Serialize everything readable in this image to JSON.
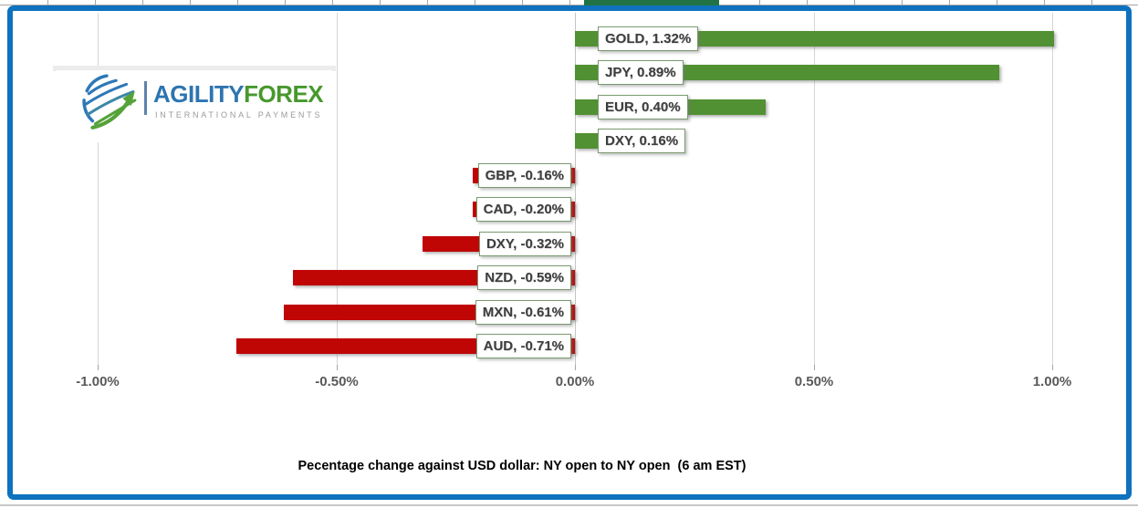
{
  "top_bar": {
    "selection_color": "#217346"
  },
  "logo": {
    "brand_primary": "AGILITY",
    "brand_secondary": "FOREX",
    "tagline": "INTERNATIONAL PAYMENTS",
    "brand_primary_color": "#2e74b0",
    "brand_secondary_color": "#47982c"
  },
  "chart_data": {
    "type": "bar",
    "orientation": "horizontal",
    "title": "Pecentage change against USD dollar: NY open to NY open  (6 am EST)",
    "value_suffix": "%",
    "xlim": [
      -1.0,
      1.0
    ],
    "grid": true,
    "positive_color": "#519133",
    "negative_color": "#c00505",
    "bars": [
      {
        "category": "GOLD",
        "value": 1.32,
        "label": "GOLD, 1.32%"
      },
      {
        "category": "JPY",
        "value": 0.89,
        "label": "JPY, 0.89%"
      },
      {
        "category": "EUR",
        "value": 0.4,
        "label": "EUR, 0.40%"
      },
      {
        "category": "DXY",
        "value": 0.16,
        "label": "DXY, 0.16%"
      },
      {
        "category": "GBP",
        "value": -0.16,
        "label": "GBP, -0.16%"
      },
      {
        "category": "CAD",
        "value": -0.2,
        "label": "CAD, -0.20%"
      },
      {
        "category": "DXY",
        "value": -0.32,
        "label": "DXY, -0.32%"
      },
      {
        "category": "NZD",
        "value": -0.59,
        "label": "NZD, -0.59%"
      },
      {
        "category": "MXN",
        "value": -0.61,
        "label": "MXN, -0.61%"
      },
      {
        "category": "AUD",
        "value": -0.71,
        "label": "AUD, -0.71%"
      }
    ],
    "x_ticks": [
      {
        "label": "-1.00%",
        "value": -1.0
      },
      {
        "label": "-0.50%",
        "value": -0.5
      },
      {
        "label": "0.00%",
        "value": 0.0
      },
      {
        "label": "0.50%",
        "value": 0.5
      },
      {
        "label": "1.00%",
        "value": 1.0
      }
    ]
  }
}
